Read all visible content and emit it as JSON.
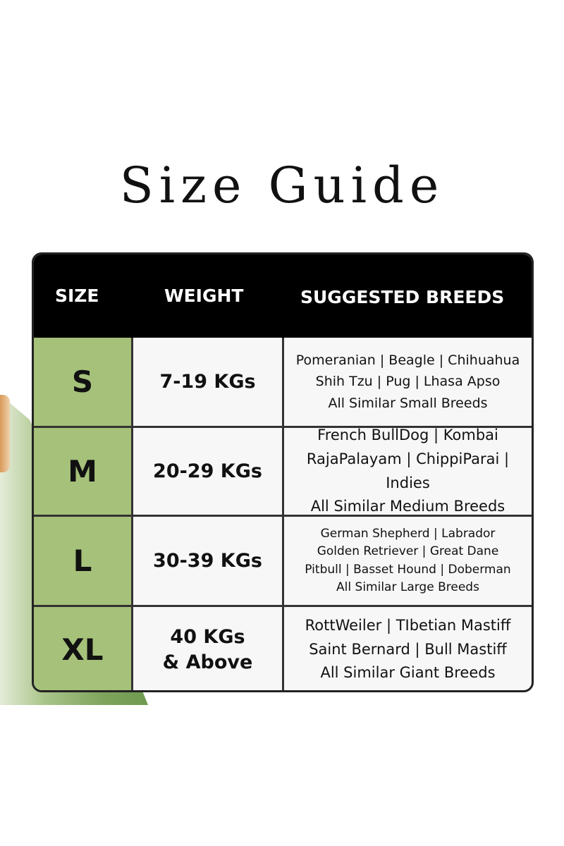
{
  "title": "Size Guide",
  "headers": [
    "SIZE",
    "WEIGHT",
    "SUGGESTED BREEDS"
  ],
  "rows": [
    {
      "size": "S",
      "weight": "7-19 KGs",
      "breeds": [
        "Pomeranian | Beagle | Chihuahua",
        "Shih Tzu | Pug | Lhasa Apso",
        "All Similar Small Breeds"
      ]
    },
    {
      "size": "M",
      "weight": "20-29 KGs",
      "breeds": [
        "French BullDog | Kombai",
        "RajaPalayam | ChippiParai | Indies",
        "All Similar Medium Breeds"
      ]
    },
    {
      "size": "L",
      "weight": "30-39 KGs",
      "breeds": [
        "German Shepherd | Labrador",
        "Golden Retriever | Great Dane",
        "Pitbull | Basset Hound | Doberman",
        "All Similar Large Breeds"
      ]
    },
    {
      "size": "XL",
      "weight": "40 KGs & Above",
      "breeds": [
        "RottWeiler | TIbetian Mastiff",
        "Saint Bernard | Bull Mastiff",
        "All Similar Giant Breeds"
      ]
    }
  ],
  "colors": {
    "size_column": "#a6c17a",
    "header": "#000000"
  }
}
